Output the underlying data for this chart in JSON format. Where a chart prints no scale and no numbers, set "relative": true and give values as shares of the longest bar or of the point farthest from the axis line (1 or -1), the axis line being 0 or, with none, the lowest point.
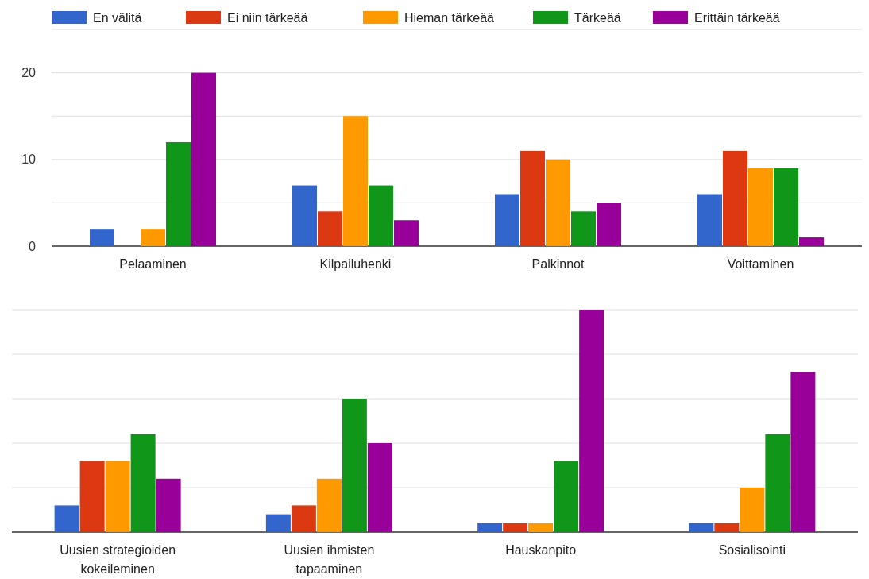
{
  "chart_data": [
    {
      "type": "bar",
      "categories": [
        "Pelaaminen",
        "Kilpailuhenki",
        "Palkinnot",
        "Voittaminen"
      ],
      "series": [
        {
          "name": "En välitä",
          "color": "#3366cc",
          "values": [
            2,
            7,
            6,
            6
          ]
        },
        {
          "name": "Ei niin tärkeää",
          "color": "#dc3912",
          "values": [
            0,
            4,
            11,
            11
          ]
        },
        {
          "name": "Hieman tärkeää",
          "color": "#ff9900",
          "values": [
            2,
            15,
            10,
            9
          ]
        },
        {
          "name": "Tärkeää",
          "color": "#109618",
          "values": [
            12,
            7,
            4,
            9
          ]
        },
        {
          "name": "Erittäin tärkeää",
          "color": "#990099",
          "values": [
            20,
            3,
            5,
            1
          ]
        }
      ],
      "ylim": [
        0,
        25
      ],
      "yticks": [
        0,
        {
          "value": 5,
          "label": null
        },
        10,
        {
          "value": 15,
          "label": null
        },
        20,
        {
          "value": 25,
          "label": null
        }
      ],
      "grid": true,
      "legend": "top"
    },
    {
      "type": "bar",
      "relative": true,
      "categories": [
        "Uusien strategioiden kokeileminen",
        "Uusien ihmisten tapaaminen",
        "Hauskanpito",
        "Sosialisointi"
      ],
      "series": [
        {
          "color": "#3366cc",
          "values": [
            0.12,
            0.08,
            0.04,
            0.04
          ]
        },
        {
          "color": "#dc3912",
          "values": [
            0.32,
            0.12,
            0.04,
            0.04
          ]
        },
        {
          "color": "#ff9900",
          "values": [
            0.32,
            0.24,
            0.04,
            0.2
          ]
        },
        {
          "color": "#109618",
          "values": [
            0.44,
            0.6,
            0.32,
            0.44
          ]
        },
        {
          "color": "#990099",
          "values": [
            0.24,
            0.4,
            1,
            0.72
          ]
        }
      ],
      "grid": true
    }
  ]
}
